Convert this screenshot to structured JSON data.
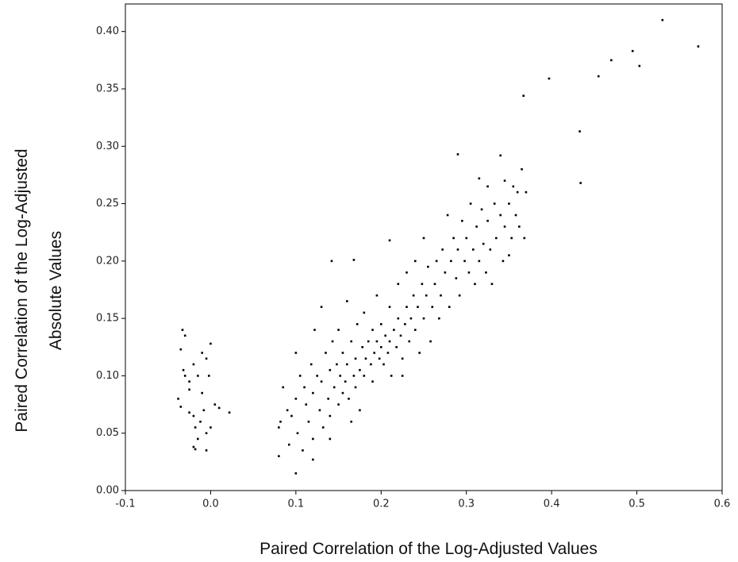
{
  "chart_data": {
    "type": "scatter",
    "xlabel": "Paired Correlation of the Log-Adjusted Values",
    "ylabel": [
      "Paired Correlation of the Log-Adjusted",
      "Absolute Values"
    ],
    "color": "#000000",
    "xlim": [
      -0.1,
      0.6
    ],
    "ylim": [
      0,
      0.424
    ],
    "xticks": [
      -0.1,
      {
        "value": 0,
        "label": "0.0"
      },
      0.1,
      0.2,
      0.3,
      0.4,
      0.5,
      0.6
    ],
    "yticks": [
      {
        "value": 0,
        "label": "0.00"
      },
      0.05,
      {
        "value": 0.1,
        "label": "0.10"
      },
      0.15,
      {
        "value": 0.2,
        "label": "0.20"
      },
      0.25,
      {
        "value": 0.3,
        "label": "0.30"
      },
      0.35,
      {
        "value": 0.4,
        "label": "0.40"
      }
    ],
    "x": [
      0.53,
      0.572,
      0.495,
      0.503,
      0.47,
      0.455,
      0.397,
      0.367,
      0.433,
      0.434,
      0.29,
      0.34,
      0.315,
      0.325,
      0.345,
      0.355,
      0.365,
      0.37,
      0.368,
      0.35,
      0.142,
      0.168,
      0.21,
      0.1,
      0.08,
      0.12,
      -0.033,
      -0.03,
      -0.035,
      -0.032,
      -0.03,
      -0.025,
      -0.02,
      -0.015,
      -0.01,
      -0.005,
      0.0,
      -0.002,
      0.005,
      0.01,
      0.022,
      -0.038,
      -0.035,
      -0.025,
      -0.02,
      -0.018,
      -0.012,
      -0.008,
      -0.005,
      0.0,
      -0.015,
      -0.02,
      -0.018,
      -0.005,
      -0.01,
      -0.025,
      0.08,
      0.082,
      0.085,
      0.09,
      0.092,
      0.095,
      0.1,
      0.1,
      0.102,
      0.105,
      0.108,
      0.11,
      0.112,
      0.115,
      0.118,
      0.12,
      0.12,
      0.122,
      0.125,
      0.128,
      0.13,
      0.13,
      0.132,
      0.135,
      0.138,
      0.14,
      0.14,
      0.143,
      0.145,
      0.148,
      0.15,
      0.15,
      0.152,
      0.155,
      0.155,
      0.158,
      0.16,
      0.16,
      0.162,
      0.165,
      0.168,
      0.17,
      0.17,
      0.172,
      0.175,
      0.178,
      0.18,
      0.18,
      0.182,
      0.185,
      0.188,
      0.19,
      0.19,
      0.192,
      0.195,
      0.195,
      0.198,
      0.2,
      0.2,
      0.203,
      0.205,
      0.208,
      0.21,
      0.21,
      0.212,
      0.215,
      0.218,
      0.22,
      0.22,
      0.223,
      0.225,
      0.228,
      0.23,
      0.23,
      0.233,
      0.235,
      0.238,
      0.24,
      0.24,
      0.243,
      0.245,
      0.248,
      0.25,
      0.25,
      0.253,
      0.255,
      0.258,
      0.26,
      0.263,
      0.265,
      0.268,
      0.27,
      0.272,
      0.275,
      0.278,
      0.28,
      0.282,
      0.285,
      0.288,
      0.29,
      0.292,
      0.295,
      0.298,
      0.3,
      0.303,
      0.305,
      0.308,
      0.31,
      0.312,
      0.315,
      0.318,
      0.32,
      0.323,
      0.325,
      0.328,
      0.33,
      0.333,
      0.335,
      0.34,
      0.343,
      0.345,
      0.35,
      0.353,
      0.358,
      0.36,
      0.362,
      0.225,
      0.175,
      0.14,
      0.165
    ],
    "y": [
      0.41,
      0.387,
      0.383,
      0.37,
      0.375,
      0.361,
      0.359,
      0.344,
      0.313,
      0.268,
      0.293,
      0.292,
      0.272,
      0.265,
      0.27,
      0.265,
      0.28,
      0.26,
      0.22,
      0.205,
      0.2,
      0.201,
      0.218,
      0.015,
      0.03,
      0.027,
      0.14,
      0.135,
      0.123,
      0.105,
      0.1,
      0.095,
      0.11,
      0.1,
      0.12,
      0.115,
      0.128,
      0.1,
      0.075,
      0.072,
      0.068,
      0.08,
      0.073,
      0.068,
      0.065,
      0.055,
      0.06,
      0.07,
      0.05,
      0.055,
      0.045,
      0.038,
      0.036,
      0.035,
      0.085,
      0.088,
      0.055,
      0.06,
      0.09,
      0.07,
      0.04,
      0.065,
      0.08,
      0.12,
      0.05,
      0.1,
      0.035,
      0.09,
      0.075,
      0.06,
      0.11,
      0.085,
      0.045,
      0.14,
      0.1,
      0.07,
      0.16,
      0.095,
      0.055,
      0.12,
      0.08,
      0.105,
      0.065,
      0.13,
      0.09,
      0.11,
      0.075,
      0.14,
      0.1,
      0.085,
      0.12,
      0.095,
      0.165,
      0.11,
      0.08,
      0.13,
      0.1,
      0.115,
      0.09,
      0.145,
      0.105,
      0.125,
      0.1,
      0.155,
      0.115,
      0.13,
      0.11,
      0.14,
      0.095,
      0.12,
      0.17,
      0.13,
      0.115,
      0.125,
      0.145,
      0.11,
      0.135,
      0.12,
      0.16,
      0.13,
      0.1,
      0.14,
      0.125,
      0.15,
      0.18,
      0.135,
      0.115,
      0.145,
      0.19,
      0.16,
      0.13,
      0.15,
      0.17,
      0.14,
      0.2,
      0.16,
      0.12,
      0.18,
      0.15,
      0.22,
      0.17,
      0.195,
      0.13,
      0.16,
      0.18,
      0.2,
      0.15,
      0.17,
      0.21,
      0.19,
      0.24,
      0.16,
      0.2,
      0.22,
      0.185,
      0.21,
      0.17,
      0.235,
      0.2,
      0.22,
      0.19,
      0.25,
      0.21,
      0.18,
      0.23,
      0.2,
      0.245,
      0.215,
      0.19,
      0.235,
      0.21,
      0.18,
      0.25,
      0.22,
      0.24,
      0.2,
      0.23,
      0.25,
      0.22,
      0.24,
      0.26,
      0.23,
      0.1,
      0.07,
      0.045,
      0.06
    ]
  }
}
